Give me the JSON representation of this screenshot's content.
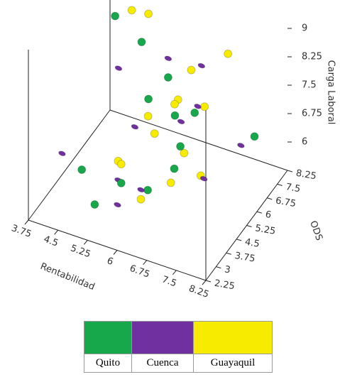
{
  "chart_data": {
    "type": "scatter3d",
    "x_label": "Rentabilidad",
    "y_label": "ODS",
    "z_label": "Carga Laboral",
    "xlim": [
      3.75,
      8.25
    ],
    "xticks": [
      3.75,
      4.5,
      5.25,
      6,
      6.75,
      7.5,
      8.25
    ],
    "ylim": [
      2.25,
      8.25
    ],
    "yticks": [
      2.25,
      3,
      3.75,
      4.5,
      5.25,
      6,
      6.75,
      7.5,
      8.25
    ],
    "zlim": [
      5.25,
      9.75
    ],
    "zticks": [
      6,
      6.75,
      7.5,
      8.25,
      9
    ],
    "series": [
      {
        "name": "Quito",
        "color": "#16a84a",
        "x": [
          5.0,
          5.5,
          6.0,
          6.5,
          7.0,
          5.5,
          6.0,
          5.0,
          6.5,
          5.5,
          4.5,
          6.0,
          7.5
        ],
        "y": [
          5.0,
          5.5,
          6.0,
          6.5,
          4.0,
          4.0,
          4.5,
          3.5,
          5.0,
          6.0,
          4.0,
          6.5,
          8.0
        ],
        "z": [
          9.75,
          9.0,
          8.0,
          7.0,
          7.5,
          6.0,
          5.75,
          5.5,
          6.25,
          7.25,
          6.0,
          6.75,
          6.0
        ]
      },
      {
        "name": "Cuenca",
        "color": "#7030a0",
        "x": [
          4.25,
          4.75,
          6.0,
          6.5,
          6.75,
          5.5,
          4.0,
          5.25,
          6.0,
          7.25,
          5.75,
          6.5,
          5.0,
          7.5
        ],
        "y": [
          6.0,
          7.5,
          6.0,
          7.0,
          6.0,
          5.0,
          4.0,
          4.5,
          4.0,
          5.0,
          3.0,
          5.5,
          5.25,
          7.0
        ],
        "z": [
          9.5,
          9.25,
          8.5,
          8.0,
          7.5,
          7.0,
          6.25,
          5.75,
          6.0,
          6.25,
          6.0,
          7.25,
          8.25,
          6.25
        ]
      },
      {
        "name": "Guayaquil",
        "color": "#f7ec00",
        "x": [
          5.25,
          5.5,
          6.5,
          7.0,
          6.25,
          6.0,
          5.75,
          6.25,
          6.75,
          7.25,
          5.25,
          6.0,
          6.5,
          5.5,
          7.0,
          6.75
        ],
        "y": [
          5.5,
          6.0,
          6.25,
          7.5,
          6.0,
          5.0,
          5.25,
          5.75,
          6.5,
          8.0,
          4.5,
          4.0,
          4.75,
          4.0,
          5.5,
          5.0
        ],
        "z": [
          9.75,
          9.5,
          8.25,
          8.25,
          7.5,
          7.0,
          7.25,
          7.5,
          7.25,
          10.0,
          6.25,
          5.75,
          6.0,
          6.5,
          6.0,
          6.75
        ]
      }
    ]
  }
}
